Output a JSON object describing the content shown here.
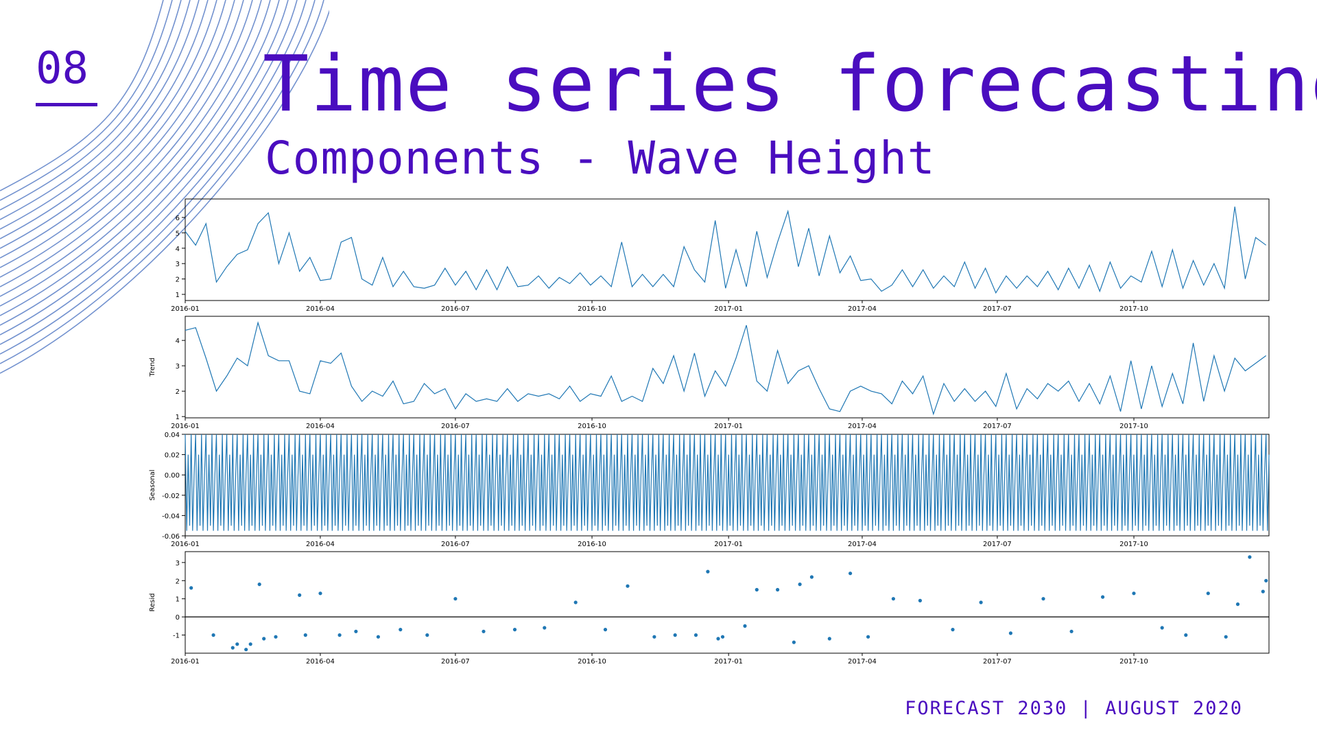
{
  "slide": {
    "number": "08",
    "title": "Time series forecasting",
    "subtitle": "Components - Wave Height"
  },
  "footer": {
    "text": "FORECAST 2030 | AUGUST 2020"
  },
  "colors": {
    "accent": "#4a0dbf",
    "series": "#1f77b4",
    "decoration": "#5b7fc7"
  },
  "chart_data": [
    {
      "type": "line",
      "name": "observed",
      "ylabel": "",
      "x_range": [
        "2016-01-01",
        "2017-12-31"
      ],
      "x_ticks": [
        "2016-01",
        "2016-04",
        "2016-07",
        "2016-10",
        "2017-01",
        "2017-04",
        "2017-07",
        "2017-10"
      ],
      "ylim": [
        0.6,
        7.2
      ],
      "y_ticks": [
        1,
        2,
        3,
        4,
        5,
        6
      ],
      "grid": false,
      "x": [
        "2016-01-01",
        "2016-01-08",
        "2016-01-15",
        "2016-01-22",
        "2016-01-29",
        "2016-02-05",
        "2016-02-12",
        "2016-02-19",
        "2016-02-26",
        "2016-03-04",
        "2016-03-11",
        "2016-03-18",
        "2016-03-25",
        "2016-04-01",
        "2016-04-08",
        "2016-04-15",
        "2016-04-22",
        "2016-04-29",
        "2016-05-06",
        "2016-05-13",
        "2016-05-20",
        "2016-05-27",
        "2016-06-03",
        "2016-06-10",
        "2016-06-17",
        "2016-06-24",
        "2016-07-01",
        "2016-07-08",
        "2016-07-15",
        "2016-07-22",
        "2016-07-29",
        "2016-08-05",
        "2016-08-12",
        "2016-08-19",
        "2016-08-26",
        "2016-09-02",
        "2016-09-09",
        "2016-09-16",
        "2016-09-23",
        "2016-09-30",
        "2016-10-07",
        "2016-10-14",
        "2016-10-21",
        "2016-10-28",
        "2016-11-04",
        "2016-11-11",
        "2016-11-18",
        "2016-11-25",
        "2016-12-02",
        "2016-12-09",
        "2016-12-16",
        "2016-12-23",
        "2016-12-30",
        "2017-01-06",
        "2017-01-13",
        "2017-01-20",
        "2017-01-27",
        "2017-02-03",
        "2017-02-10",
        "2017-02-17",
        "2017-02-24",
        "2017-03-03",
        "2017-03-10",
        "2017-03-17",
        "2017-03-24",
        "2017-03-31",
        "2017-04-07",
        "2017-04-14",
        "2017-04-21",
        "2017-04-28",
        "2017-05-05",
        "2017-05-12",
        "2017-05-19",
        "2017-05-26",
        "2017-06-02",
        "2017-06-09",
        "2017-06-16",
        "2017-06-23",
        "2017-06-30",
        "2017-07-07",
        "2017-07-14",
        "2017-07-21",
        "2017-07-28",
        "2017-08-04",
        "2017-08-11",
        "2017-08-18",
        "2017-08-25",
        "2017-09-01",
        "2017-09-08",
        "2017-09-15",
        "2017-09-22",
        "2017-09-29",
        "2017-10-06",
        "2017-10-13",
        "2017-10-20",
        "2017-10-27",
        "2017-11-03",
        "2017-11-10",
        "2017-11-17",
        "2017-11-24",
        "2017-12-01",
        "2017-12-08",
        "2017-12-15",
        "2017-12-22",
        "2017-12-29"
      ],
      "values": [
        5.1,
        4.2,
        5.6,
        1.8,
        2.8,
        3.6,
        3.9,
        5.6,
        6.3,
        3.0,
        5.0,
        2.5,
        3.4,
        1.9,
        2.0,
        4.4,
        4.7,
        2.0,
        1.6,
        3.4,
        1.5,
        2.5,
        1.5,
        1.4,
        1.6,
        2.7,
        1.6,
        2.5,
        1.3,
        2.6,
        1.3,
        2.8,
        1.5,
        1.6,
        2.2,
        1.4,
        2.1,
        1.7,
        2.4,
        1.6,
        2.2,
        1.5,
        4.4,
        1.5,
        2.3,
        1.5,
        2.3,
        1.5,
        4.1,
        2.6,
        1.8,
        5.8,
        1.4,
        3.9,
        1.5,
        5.1,
        2.1,
        4.4,
        6.4,
        2.8,
        5.3,
        2.2,
        4.8,
        2.4,
        3.5,
        1.9,
        2.0,
        1.2,
        1.6,
        2.6,
        1.5,
        2.6,
        1.4,
        2.2,
        1.5,
        3.1,
        1.4,
        2.7,
        1.1,
        2.2,
        1.4,
        2.2,
        1.5,
        2.5,
        1.3,
        2.7,
        1.4,
        2.9,
        1.2,
        3.1,
        1.4,
        2.2,
        1.8,
        3.8,
        1.5,
        3.9,
        1.4,
        3.2,
        1.6,
        3.0,
        1.4,
        6.7,
        2.0,
        4.7,
        4.2
      ]
    },
    {
      "type": "line",
      "name": "trend",
      "ylabel": "Trend",
      "x_range": [
        "2016-01-01",
        "2017-12-31"
      ],
      "x_ticks": [
        "2016-01",
        "2016-04",
        "2016-07",
        "2016-10",
        "2017-01",
        "2017-04",
        "2017-07",
        "2017-10"
      ],
      "ylim": [
        0.95,
        4.95
      ],
      "y_ticks": [
        1,
        2,
        3,
        4
      ],
      "grid": false,
      "x": [
        "2016-01-01",
        "2016-01-08",
        "2016-01-15",
        "2016-01-22",
        "2016-01-29",
        "2016-02-05",
        "2016-02-12",
        "2016-02-19",
        "2016-02-26",
        "2016-03-04",
        "2016-03-11",
        "2016-03-18",
        "2016-03-25",
        "2016-04-01",
        "2016-04-08",
        "2016-04-15",
        "2016-04-22",
        "2016-04-29",
        "2016-05-06",
        "2016-05-13",
        "2016-05-20",
        "2016-05-27",
        "2016-06-03",
        "2016-06-10",
        "2016-06-17",
        "2016-06-24",
        "2016-07-01",
        "2016-07-08",
        "2016-07-15",
        "2016-07-22",
        "2016-07-29",
        "2016-08-05",
        "2016-08-12",
        "2016-08-19",
        "2016-08-26",
        "2016-09-02",
        "2016-09-09",
        "2016-09-16",
        "2016-09-23",
        "2016-09-30",
        "2016-10-07",
        "2016-10-14",
        "2016-10-21",
        "2016-10-28",
        "2016-11-04",
        "2016-11-11",
        "2016-11-18",
        "2016-11-25",
        "2016-12-02",
        "2016-12-09",
        "2016-12-16",
        "2016-12-23",
        "2016-12-30",
        "2017-01-06",
        "2017-01-13",
        "2017-01-20",
        "2017-01-27",
        "2017-02-03",
        "2017-02-10",
        "2017-02-17",
        "2017-02-24",
        "2017-03-03",
        "2017-03-10",
        "2017-03-17",
        "2017-03-24",
        "2017-03-31",
        "2017-04-07",
        "2017-04-14",
        "2017-04-21",
        "2017-04-28",
        "2017-05-05",
        "2017-05-12",
        "2017-05-19",
        "2017-05-26",
        "2017-06-02",
        "2017-06-09",
        "2017-06-16",
        "2017-06-23",
        "2017-06-30",
        "2017-07-07",
        "2017-07-14",
        "2017-07-21",
        "2017-07-28",
        "2017-08-04",
        "2017-08-11",
        "2017-08-18",
        "2017-08-25",
        "2017-09-01",
        "2017-09-08",
        "2017-09-15",
        "2017-09-22",
        "2017-09-29",
        "2017-10-06",
        "2017-10-13",
        "2017-10-20",
        "2017-10-27",
        "2017-11-03",
        "2017-11-10",
        "2017-11-17",
        "2017-11-24",
        "2017-12-01",
        "2017-12-08",
        "2017-12-15",
        "2017-12-22",
        "2017-12-29"
      ],
      "values": [
        4.4,
        4.5,
        3.3,
        2.0,
        2.6,
        3.3,
        3.0,
        4.7,
        3.4,
        3.2,
        3.2,
        2.0,
        1.9,
        3.2,
        3.1,
        3.5,
        2.2,
        1.6,
        2.0,
        1.8,
        2.4,
        1.5,
        1.6,
        2.3,
        1.9,
        2.1,
        1.3,
        1.9,
        1.6,
        1.7,
        1.6,
        2.1,
        1.6,
        1.9,
        1.8,
        1.9,
        1.7,
        2.2,
        1.6,
        1.9,
        1.8,
        2.6,
        1.6,
        1.8,
        1.6,
        2.9,
        2.3,
        3.4,
        2.0,
        3.5,
        1.8,
        2.8,
        2.2,
        3.3,
        4.6,
        2.4,
        2.0,
        3.6,
        2.3,
        2.8,
        3.0,
        2.1,
        1.3,
        1.2,
        2.0,
        2.2,
        2.0,
        1.9,
        1.5,
        2.4,
        1.9,
        2.6,
        1.1,
        2.3,
        1.6,
        2.1,
        1.6,
        2.0,
        1.4,
        2.7,
        1.3,
        2.1,
        1.7,
        2.3,
        2.0,
        2.4,
        1.6,
        2.3,
        1.5,
        2.6,
        1.2,
        3.2,
        1.3,
        3.0,
        1.4,
        2.7,
        1.5,
        3.9,
        1.6,
        3.4,
        2.0,
        3.3,
        2.8,
        3.1,
        3.4
      ]
    },
    {
      "type": "line",
      "name": "seasonal",
      "ylabel": "Seasonal",
      "x_range": [
        "2016-01-01",
        "2017-12-31"
      ],
      "x_ticks": [
        "2016-01",
        "2016-04",
        "2016-07",
        "2016-10",
        "2017-01",
        "2017-04",
        "2017-07",
        "2017-10"
      ],
      "ylim": [
        -0.06,
        0.04
      ],
      "y_ticks": [
        -0.06,
        -0.04,
        -0.02,
        0.0,
        0.02,
        0.04
      ],
      "grid": false,
      "period_days": 7,
      "pattern": [
        0.04,
        -0.055,
        0.02,
        -0.05,
        0.04,
        -0.055,
        0.0
      ]
    },
    {
      "type": "scatter",
      "name": "resid",
      "ylabel": "Resid",
      "x_range": [
        "2016-01-01",
        "2017-12-31"
      ],
      "x_ticks": [
        "2016-01",
        "2016-04",
        "2016-07",
        "2016-10",
        "2017-01",
        "2017-04",
        "2017-07",
        "2017-10"
      ],
      "ylim": [
        -2.0,
        3.6
      ],
      "y_ticks": [
        -1,
        0,
        1,
        2,
        3
      ],
      "grid": false,
      "baseline": 0,
      "x": [
        "2016-01-05",
        "2016-01-20",
        "2016-02-02",
        "2016-02-05",
        "2016-02-11",
        "2016-02-14",
        "2016-02-20",
        "2016-02-23",
        "2016-03-02",
        "2016-03-18",
        "2016-03-22",
        "2016-04-01",
        "2016-04-14",
        "2016-04-25",
        "2016-05-10",
        "2016-05-25",
        "2016-06-12",
        "2016-07-01",
        "2016-07-20",
        "2016-08-10",
        "2016-08-30",
        "2016-09-20",
        "2016-10-10",
        "2016-10-25",
        "2016-11-12",
        "2016-11-26",
        "2016-12-10",
        "2016-12-18",
        "2016-12-25",
        "2016-12-28",
        "2017-01-12",
        "2017-01-20",
        "2017-02-03",
        "2017-02-14",
        "2017-02-18",
        "2017-02-26",
        "2017-03-10",
        "2017-03-24",
        "2017-04-05",
        "2017-04-22",
        "2017-05-10",
        "2017-06-01",
        "2017-06-20",
        "2017-07-10",
        "2017-08-01",
        "2017-08-20",
        "2017-09-10",
        "2017-10-01",
        "2017-10-20",
        "2017-11-05",
        "2017-11-20",
        "2017-12-02",
        "2017-12-10",
        "2017-12-18",
        "2017-12-27",
        "2017-12-29"
      ],
      "values": [
        1.6,
        -1.0,
        -1.7,
        -1.5,
        -1.8,
        -1.5,
        1.8,
        -1.2,
        -1.1,
        1.2,
        -1.0,
        1.3,
        -1.0,
        -0.8,
        -1.1,
        -0.7,
        -1.0,
        1.0,
        -0.8,
        -0.7,
        -0.6,
        0.8,
        -0.7,
        1.7,
        -1.1,
        -1.0,
        -1.0,
        2.5,
        -1.2,
        -1.1,
        -0.5,
        1.5,
        1.5,
        -1.4,
        1.8,
        2.2,
        -1.2,
        2.4,
        -1.1,
        1.0,
        0.9,
        -0.7,
        0.8,
        -0.9,
        1.0,
        -0.8,
        1.1,
        1.3,
        -0.6,
        -1.0,
        1.3,
        -1.1,
        0.7,
        3.3,
        1.4,
        2.0
      ]
    }
  ]
}
